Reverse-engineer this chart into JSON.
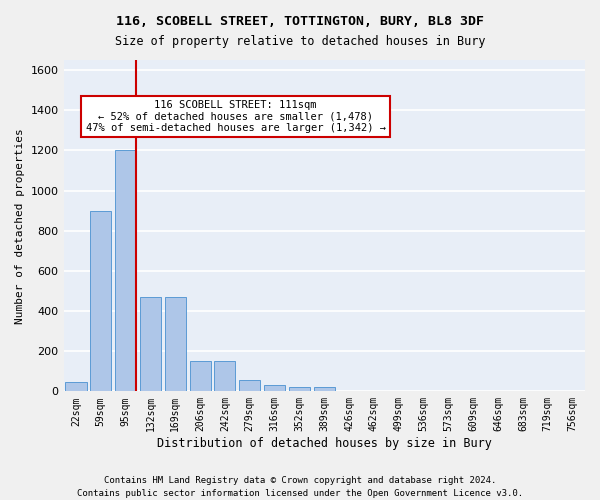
{
  "title_line1": "116, SCOBELL STREET, TOTTINGTON, BURY, BL8 3DF",
  "title_line2": "Size of property relative to detached houses in Bury",
  "xlabel": "Distribution of detached houses by size in Bury",
  "ylabel": "Number of detached properties",
  "bar_color": "#aec6e8",
  "bar_edge_color": "#5b9bd5",
  "background_color": "#e8eef7",
  "grid_color": "#ffffff",
  "bins": [
    "22sqm",
    "59sqm",
    "95sqm",
    "132sqm",
    "169sqm",
    "206sqm",
    "242sqm",
    "279sqm",
    "316sqm",
    "352sqm",
    "389sqm",
    "426sqm",
    "462sqm",
    "499sqm",
    "536sqm",
    "573sqm",
    "609sqm",
    "646sqm",
    "683sqm",
    "719sqm",
    "756sqm"
  ],
  "values": [
    45,
    900,
    1200,
    470,
    470,
    150,
    150,
    55,
    30,
    20,
    20,
    0,
    0,
    0,
    0,
    0,
    0,
    0,
    0,
    0,
    0
  ],
  "ylim": [
    0,
    1650
  ],
  "yticks": [
    0,
    200,
    400,
    600,
    800,
    1000,
    1200,
    1400,
    1600
  ],
  "annotation_text": "116 SCOBELL STREET: 111sqm\n← 52% of detached houses are smaller (1,478)\n47% of semi-detached houses are larger (1,342) →",
  "vline_x": 2,
  "vline_color": "#cc0000",
  "box_color": "#cc0000",
  "footnote1": "Contains HM Land Registry data © Crown copyright and database right 2024.",
  "footnote2": "Contains public sector information licensed under the Open Government Licence v3.0."
}
